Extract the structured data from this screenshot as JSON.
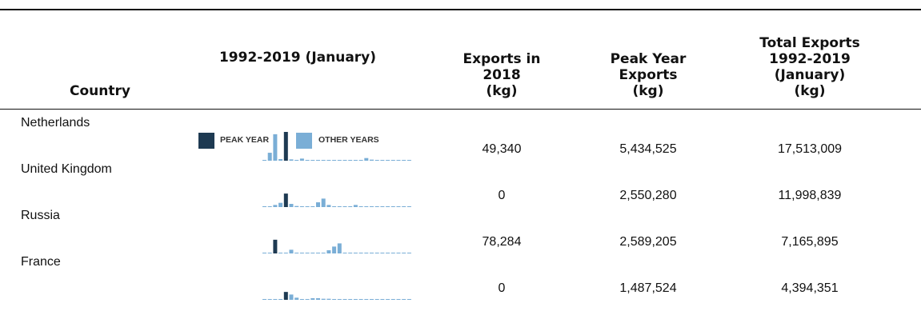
{
  "table": {
    "headers": [
      [
        "Country"
      ],
      [
        "1992-2019 (January)"
      ],
      [
        "Exports in",
        "2018",
        "(kg)"
      ],
      [
        "Peak Year",
        "Exports",
        "(kg)"
      ],
      [
        "Total Exports",
        "1992-2019",
        "(January)",
        "(kg)"
      ]
    ],
    "legend": {
      "peak": "PEAK YEAR",
      "peak_color": "#1e3a52",
      "other": "OTHER YEARS",
      "other_color": "#7aaed6"
    },
    "sparkline_ylim": [
      0,
      5434525
    ],
    "rows": [
      {
        "country": "Netherlands",
        "exports_2018": "49,340",
        "peak_year_exports": "5,434,525",
        "total_exports": "17,513,009",
        "yearly": [
          100000,
          1500000,
          5000000,
          300000,
          5434525,
          250000,
          120000,
          400000,
          60000,
          0,
          0,
          0,
          60000,
          0,
          0,
          0,
          0,
          0,
          0,
          500000,
          200000,
          90000,
          60000,
          60000,
          60000,
          0,
          49340,
          0
        ]
      },
      {
        "country": "United Kingdom",
        "exports_2018": "0",
        "peak_year_exports": "2,550,280",
        "total_exports": "11,998,839",
        "yearly": [
          60000,
          60000,
          400000,
          800000,
          2550280,
          600000,
          200000,
          100000,
          100000,
          100000,
          900000,
          1600000,
          400000,
          100000,
          60000,
          0,
          0,
          400000,
          100000,
          100000,
          0,
          0,
          0,
          0,
          0,
          0,
          0,
          0
        ]
      },
      {
        "country": "Russia",
        "exports_2018": "78,284",
        "peak_year_exports": "2,589,205",
        "total_exports": "7,165,895",
        "yearly": [
          100000,
          0,
          2589205,
          0,
          0,
          700000,
          0,
          0,
          0,
          0,
          0,
          0,
          600000,
          1300000,
          1900000,
          0,
          0,
          0,
          0,
          0,
          0,
          0,
          0,
          0,
          0,
          0,
          78284,
          0
        ]
      },
      {
        "country": "France",
        "exports_2018": "0",
        "peak_year_exports": "1,487,524",
        "total_exports": "4,394,351",
        "yearly": [
          0,
          0,
          0,
          100000,
          1487524,
          1000000,
          400000,
          0,
          0,
          300000,
          300000,
          200000,
          200000,
          60000,
          0,
          0,
          0,
          0,
          0,
          0,
          0,
          0,
          0,
          0,
          0,
          0,
          0,
          0
        ]
      }
    ]
  }
}
